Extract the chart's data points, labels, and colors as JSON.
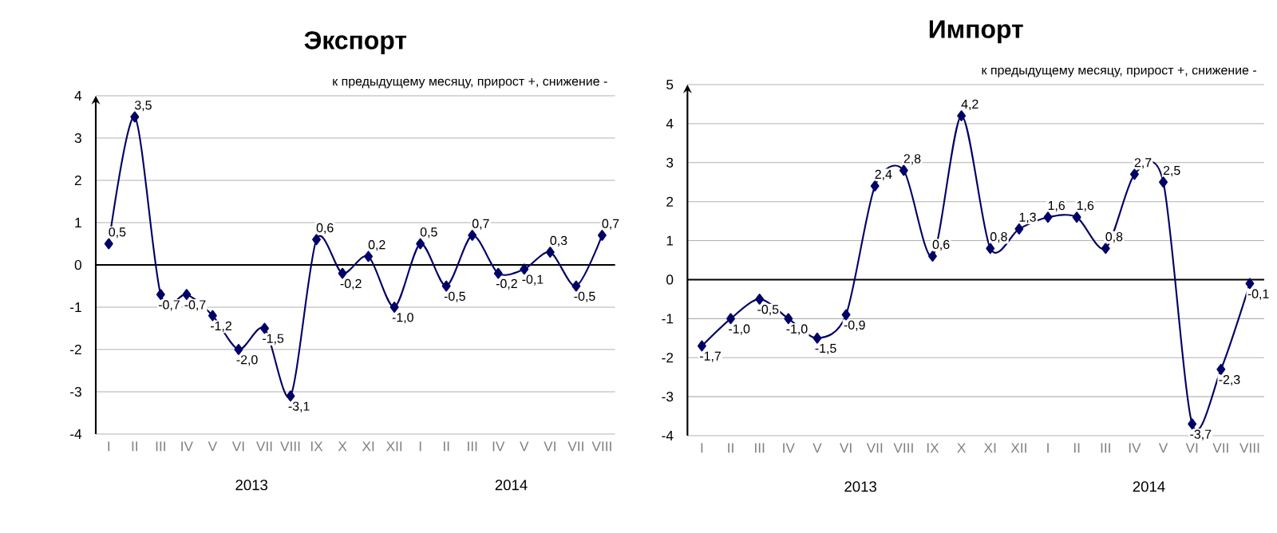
{
  "chart_data": [
    {
      "type": "line",
      "title": "Экспорт",
      "subtitle": "к предыдущему месяцу, прирост +, снижение -",
      "categories": [
        "I",
        "II",
        "III",
        "IV",
        "V",
        "VI",
        "VII",
        "VIII",
        "IX",
        "X",
        "XI",
        "XII",
        "I",
        "II",
        "III",
        "IV",
        "V",
        "VI",
        "VII",
        "VIII"
      ],
      "series": [
        {
          "color": "#000066",
          "values": [
            0.5,
            3.5,
            -0.7,
            -0.7,
            -1.2,
            -2.0,
            -1.5,
            -3.1,
            0.6,
            -0.2,
            0.2,
            -1.0,
            0.5,
            -0.5,
            0.7,
            -0.2,
            -0.1,
            0.3,
            -0.5,
            0.7
          ],
          "value_labels": [
            "0,5",
            "3,5",
            "-0,7",
            "-0,7",
            "-1,2",
            "-2,0",
            "-1,5",
            "-3,1",
            "0,6",
            "-0,2",
            "0,2",
            "-1,0",
            "0,5",
            "-0,5",
            "0,7",
            "-0,2",
            "-0,1",
            "0,3",
            "-0,5",
            "0,7"
          ]
        }
      ],
      "ylim": [
        -4,
        4
      ],
      "yticks": [
        -4,
        -3,
        -2,
        -1,
        0,
        1,
        2,
        3,
        4
      ],
      "grid": "y",
      "marker": "diamond",
      "annotations": [
        "2013",
        "2014"
      ]
    },
    {
      "type": "line",
      "title": "Импорт",
      "subtitle": "к предыдущему месяцу, прирост +, снижение -",
      "categories": [
        "I",
        "II",
        "III",
        "IV",
        "V",
        "VI",
        "VII",
        "VIII",
        "IX",
        "X",
        "XI",
        "XII",
        "I",
        "II",
        "III",
        "IV",
        "V",
        "VI",
        "VII",
        "VIII"
      ],
      "series": [
        {
          "color": "#000066",
          "values": [
            -1.7,
            -1.0,
            -0.5,
            -1.0,
            -1.5,
            -0.9,
            2.4,
            2.8,
            0.6,
            4.2,
            0.8,
            1.3,
            1.6,
            1.6,
            0.8,
            2.7,
            2.5,
            -3.7,
            -2.3,
            -0.1
          ],
          "value_labels": [
            "-1,7",
            "-1,0",
            "-0,5",
            "-1,0",
            "-1,5",
            "-0,9",
            "2,4",
            "2,8",
            "0,6",
            "4,2",
            "0,8",
            "1,3",
            "1,6",
            "1,6",
            "0,8",
            "2,7",
            "2,5",
            "-3,7",
            "-2,3",
            "-0,1"
          ]
        }
      ],
      "ylim": [
        -4,
        5
      ],
      "yticks": [
        -4,
        -3,
        -2,
        -1,
        0,
        1,
        2,
        3,
        4,
        5
      ],
      "grid": "y",
      "marker": "diamond",
      "annotations": [
        "2013",
        "2014"
      ]
    }
  ]
}
